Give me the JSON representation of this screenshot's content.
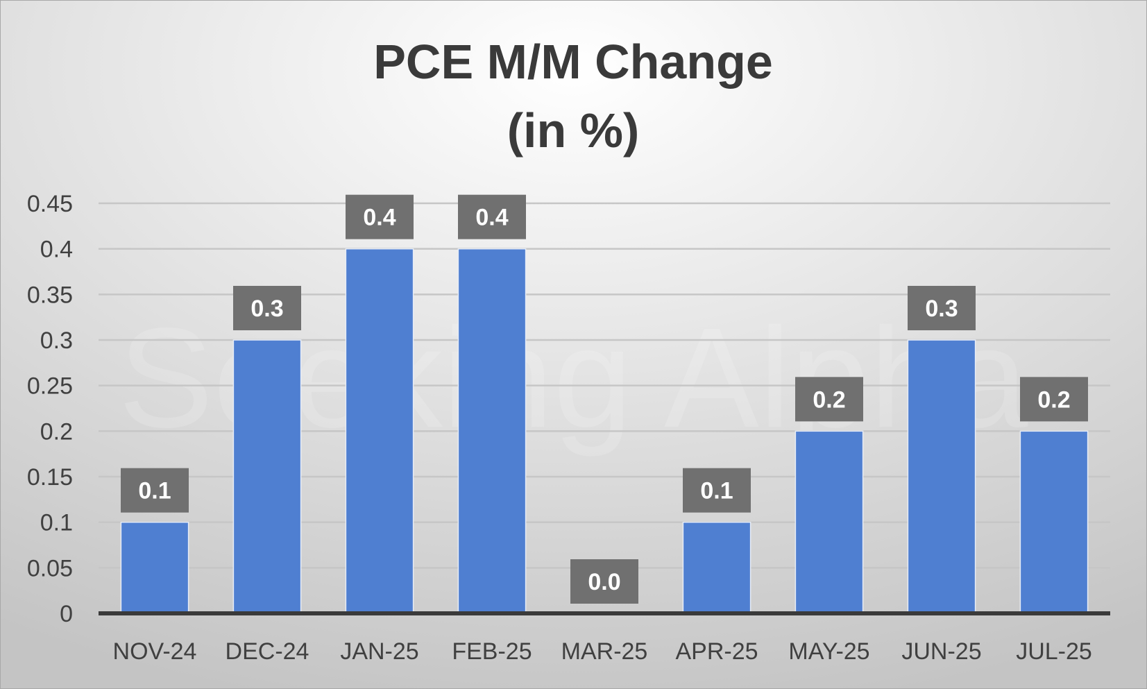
{
  "colors": {
    "bar": "#4f7fd1",
    "label_box": "#707070",
    "label_text": "#ffffff",
    "grid": "#c6c6c6",
    "axis": "#3a3a3a",
    "text": "#404040",
    "background_light": "#ffffff",
    "background_dark": "#c4c4c4"
  },
  "watermark": "Seeking Alpha",
  "chart_data": {
    "type": "bar",
    "title": "PCE M/M Change",
    "subtitle": "(in %)",
    "xlabel": "",
    "ylabel": "",
    "categories": [
      "NOV-24",
      "DEC-24",
      "JAN-25",
      "FEB-25",
      "MAR-25",
      "APR-25",
      "MAY-25",
      "JUN-25",
      "JUL-25"
    ],
    "values": [
      0.1,
      0.3,
      0.4,
      0.4,
      0.0,
      0.1,
      0.2,
      0.3,
      0.2
    ],
    "data_labels": [
      "0.1",
      "0.3",
      "0.4",
      "0.4",
      "0.0",
      "0.1",
      "0.2",
      "0.3",
      "0.2"
    ],
    "ylim": [
      0,
      0.45
    ],
    "yticks": [
      "0",
      "0.05",
      "0.1",
      "0.15",
      "0.2",
      "0.25",
      "0.3",
      "0.35",
      "0.4",
      "0.45"
    ],
    "grid": true,
    "legend": "none"
  }
}
